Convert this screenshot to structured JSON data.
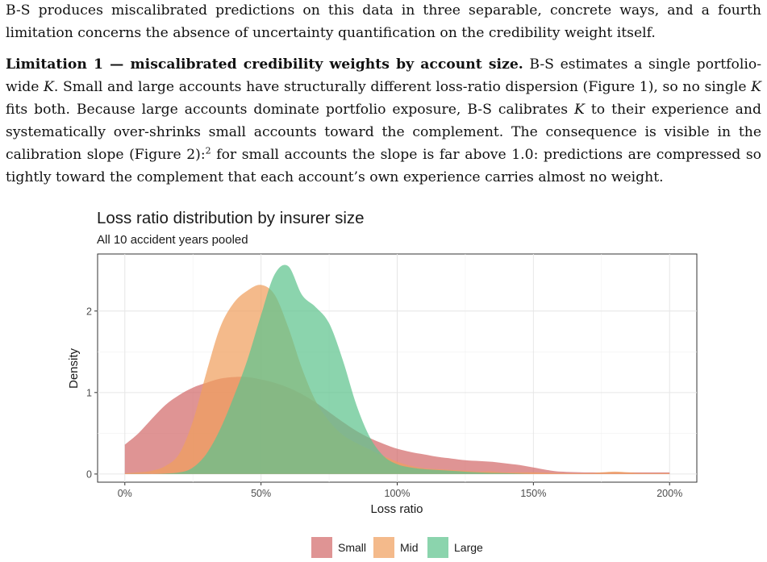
{
  "paragraph1": "B-S produces miscalibrated predictions on this data in three separable, concrete ways, and a fourth limitation concerns the absence of uncertainty quantification on the credibility weight itself.",
  "paragraph2": {
    "heading": "Limitation 1 — miscalibrated credibility weights by account size.",
    "s1": " B-S estimates a single portfolio-wide ",
    "k1": "K",
    "s2": ". Small and large accounts have structurally different loss-ratio dispersion (Figure 1), so no single ",
    "k2": "K",
    "s3": " fits both. Because large accounts dominate portfolio exposure, B-S calibrates ",
    "k3": "K",
    "s4": " to their experience and systematically over-shrinks small accounts toward the complement. The consequence is visible in the calibration slope (Figure 2):",
    "footnote": "2",
    "s5": " for small accounts the slope is far above 1.0: predictions are compressed so tightly toward the complement that each account’s own experience carries almost no weight."
  },
  "chart_data": {
    "type": "area",
    "title": "Loss ratio distribution by insurer size",
    "subtitle": "All 10 accident years pooled",
    "xlabel": "Loss ratio",
    "ylabel": "Density",
    "xlim": [
      -0.1,
      2.1
    ],
    "ylim": [
      -0.1,
      2.7
    ],
    "x_ticks": [
      0,
      0.5,
      1.0,
      1.5,
      2.0
    ],
    "x_tick_labels": [
      "0%",
      "50%",
      "100%",
      "150%",
      "200%"
    ],
    "y_ticks": [
      0,
      1,
      2
    ],
    "y_tick_labels": [
      "0",
      "1",
      "2"
    ],
    "grid": true,
    "legend_position": "bottom",
    "series": [
      {
        "name": "Small",
        "color": "#d36b6b",
        "x": [
          0,
          0.05,
          0.1,
          0.15,
          0.2,
          0.25,
          0.3,
          0.35,
          0.4,
          0.45,
          0.5,
          0.55,
          0.6,
          0.65,
          0.7,
          0.75,
          0.8,
          0.85,
          0.9,
          0.95,
          1.0,
          1.05,
          1.1,
          1.15,
          1.2,
          1.25,
          1.3,
          1.35,
          1.4,
          1.45,
          1.5,
          1.55,
          1.6,
          1.7,
          1.8,
          1.9,
          2.0
        ],
        "y": [
          0.36,
          0.5,
          0.68,
          0.85,
          0.97,
          1.06,
          1.12,
          1.17,
          1.19,
          1.19,
          1.16,
          1.12,
          1.06,
          0.98,
          0.88,
          0.76,
          0.64,
          0.53,
          0.44,
          0.37,
          0.31,
          0.27,
          0.24,
          0.21,
          0.19,
          0.17,
          0.16,
          0.15,
          0.13,
          0.11,
          0.08,
          0.05,
          0.03,
          0.02,
          0.02,
          0.02,
          0.02
        ]
      },
      {
        "name": "Mid",
        "color": "#f0a05e",
        "x": [
          0,
          0.05,
          0.1,
          0.15,
          0.2,
          0.25,
          0.3,
          0.35,
          0.4,
          0.45,
          0.5,
          0.55,
          0.6,
          0.65,
          0.7,
          0.75,
          0.8,
          0.85,
          0.9,
          0.95,
          1.0,
          1.05,
          1.1,
          1.15,
          1.2,
          1.25,
          1.3,
          1.35,
          1.4,
          1.5,
          1.6,
          1.7,
          1.75,
          1.8,
          1.85,
          1.9,
          2.0
        ],
        "y": [
          0.01,
          0.02,
          0.04,
          0.1,
          0.25,
          0.65,
          1.25,
          1.8,
          2.1,
          2.25,
          2.32,
          2.2,
          1.8,
          1.3,
          0.9,
          0.65,
          0.48,
          0.38,
          0.3,
          0.22,
          0.15,
          0.1,
          0.07,
          0.06,
          0.05,
          0.04,
          0.03,
          0.03,
          0.02,
          0.02,
          0.01,
          0.01,
          0.02,
          0.03,
          0.02,
          0.01,
          0.01
        ]
      },
      {
        "name": "Large",
        "color": "#5ec48e",
        "x": [
          0,
          0.1,
          0.2,
          0.25,
          0.3,
          0.35,
          0.4,
          0.45,
          0.5,
          0.55,
          0.6,
          0.65,
          0.7,
          0.75,
          0.8,
          0.85,
          0.9,
          0.95,
          1.0,
          1.05,
          1.1,
          1.2,
          1.3,
          1.4,
          1.5
        ],
        "y": [
          0.0,
          0.0,
          0.02,
          0.08,
          0.25,
          0.55,
          0.95,
          1.4,
          1.95,
          2.45,
          2.55,
          2.2,
          2.05,
          1.85,
          1.4,
          0.85,
          0.45,
          0.22,
          0.12,
          0.08,
          0.06,
          0.04,
          0.02,
          0.01,
          0.0
        ]
      }
    ]
  }
}
